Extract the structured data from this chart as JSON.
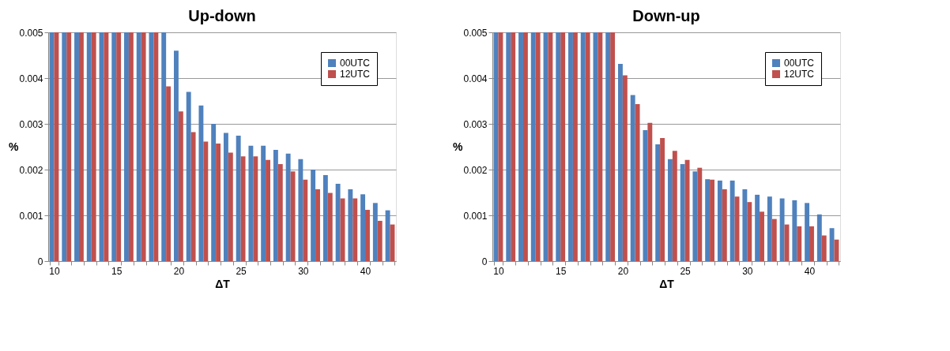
{
  "chart_data": [
    {
      "type": "bar",
      "title": "Up-down",
      "xlabel": "ΔT",
      "ylabel": "%",
      "categories": [
        "10",
        null,
        null,
        null,
        null,
        "15",
        null,
        null,
        null,
        null,
        "20",
        null,
        null,
        null,
        null,
        "25",
        null,
        null,
        null,
        null,
        "30",
        null,
        null,
        null,
        null,
        "40",
        null,
        null
      ],
      "series": [
        {
          "name": "00UTC",
          "color": "#4f81bd",
          "values": [
            0.005,
            0.005,
            0.005,
            0.005,
            0.005,
            0.005,
            0.005,
            0.005,
            0.005,
            0.005,
            0.0046,
            0.0037,
            0.0034,
            0.003,
            0.0028,
            0.00274,
            0.00252,
            0.00252,
            0.00243,
            0.00235,
            0.00223,
            0.002,
            0.00188,
            0.00169,
            0.00157,
            0.00146,
            0.00127,
            0.00111
          ]
        },
        {
          "name": "12UTC",
          "color": "#c0504d",
          "values": [
            0.005,
            0.005,
            0.005,
            0.005,
            0.005,
            0.005,
            0.005,
            0.005,
            0.005,
            0.00382,
            0.00327,
            0.00282,
            0.00261,
            0.00257,
            0.00237,
            0.00229,
            0.00229,
            0.00221,
            0.00212,
            0.00196,
            0.00178,
            0.00157,
            0.00149,
            0.00137,
            0.00137,
            0.00112,
            0.00088,
            0.0008
          ]
        }
      ],
      "ylim": [
        0,
        0.005
      ],
      "yticks": [
        0,
        0.001,
        0.002,
        0.003,
        0.004,
        0.005
      ],
      "grid": "y",
      "legend": "top right"
    },
    {
      "type": "bar",
      "title": "Down-up",
      "xlabel": "ΔT",
      "ylabel": "%",
      "categories": [
        "10",
        null,
        null,
        null,
        null,
        "15",
        null,
        null,
        null,
        null,
        "20",
        null,
        null,
        null,
        null,
        "25",
        null,
        null,
        null,
        null,
        "30",
        null,
        null,
        null,
        null,
        "40",
        null,
        null
      ],
      "series": [
        {
          "name": "00UTC",
          "color": "#4f81bd",
          "values": [
            0.005,
            0.005,
            0.005,
            0.005,
            0.005,
            0.005,
            0.005,
            0.005,
            0.005,
            0.005,
            0.00431,
            0.00363,
            0.00286,
            0.00255,
            0.00223,
            0.00212,
            0.00196,
            0.00179,
            0.00176,
            0.00176,
            0.00157,
            0.00145,
            0.00141,
            0.00137,
            0.00133,
            0.00127,
            0.00102,
            0.00072
          ]
        },
        {
          "name": "12UTC",
          "color": "#c0504d",
          "values": [
            0.005,
            0.005,
            0.005,
            0.005,
            0.005,
            0.005,
            0.005,
            0.005,
            0.005,
            0.005,
            0.00406,
            0.00343,
            0.00302,
            0.00269,
            0.00241,
            0.00221,
            0.00204,
            0.00178,
            0.00157,
            0.00141,
            0.00129,
            0.00108,
            0.00092,
            0.0008,
            0.00076,
            0.00076,
            0.00056,
            0.00047
          ]
        }
      ],
      "ylim": [
        0,
        0.005
      ],
      "yticks": [
        0,
        0.001,
        0.002,
        0.003,
        0.004,
        0.005
      ],
      "grid": "y",
      "legend": "top right"
    }
  ]
}
